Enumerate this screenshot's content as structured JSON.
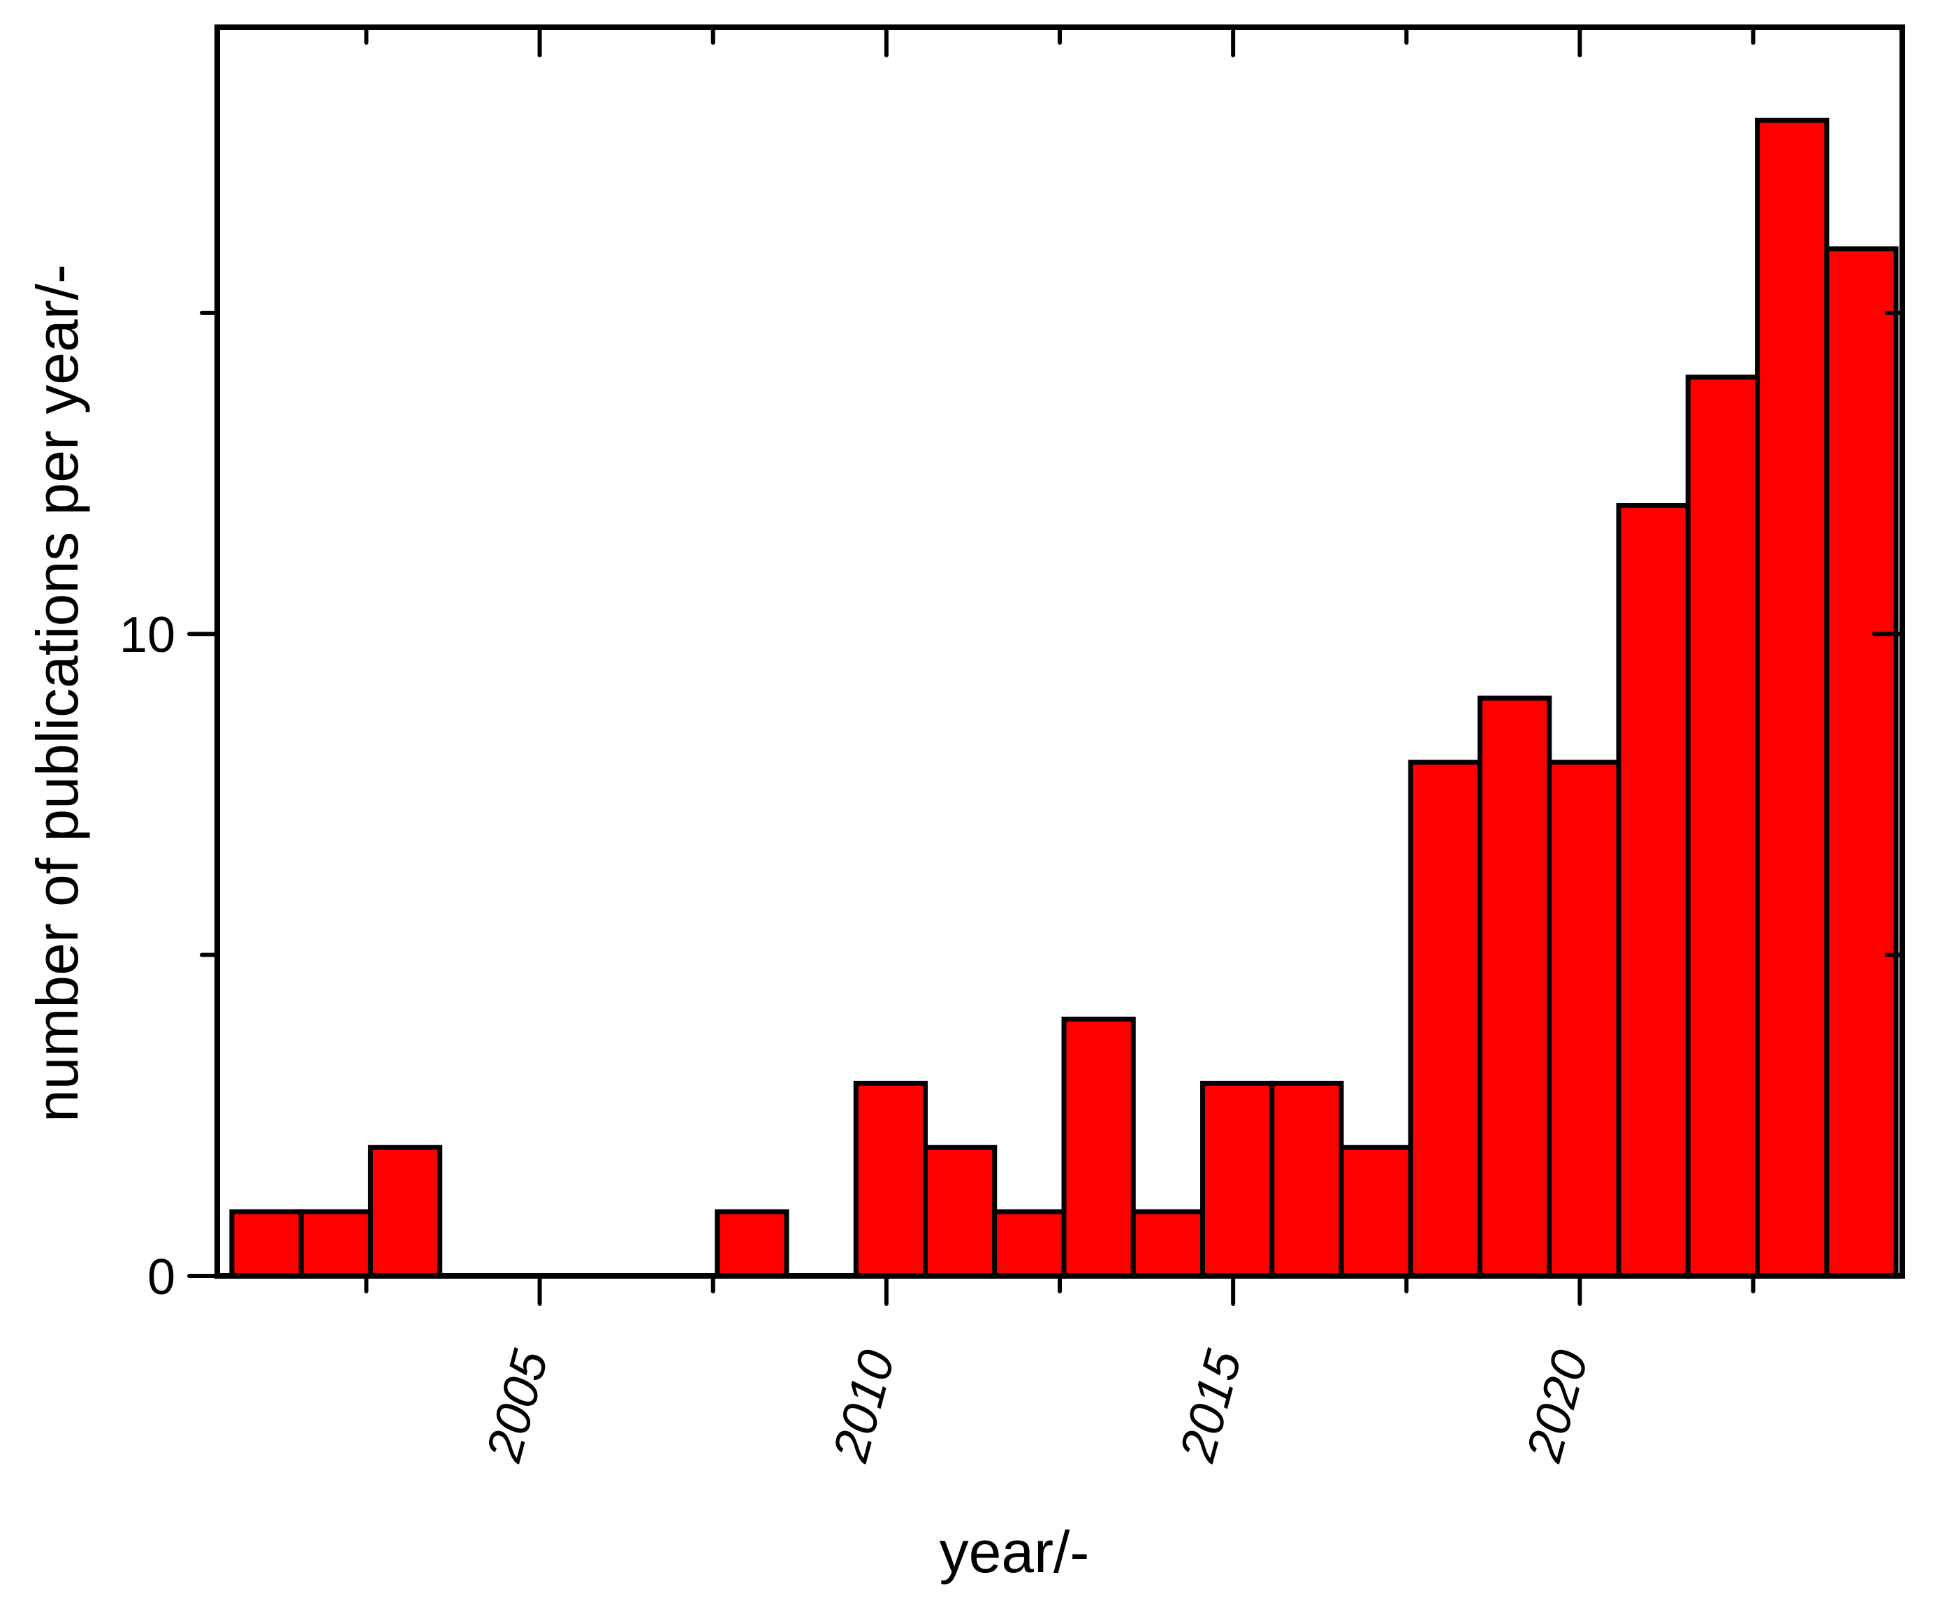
{
  "chart_data": {
    "type": "bar",
    "title": "",
    "xlabel": "year/-",
    "ylabel": "number of publications per year/-",
    "categories": [
      2001,
      2002,
      2003,
      2004,
      2005,
      2006,
      2007,
      2008,
      2009,
      2010,
      2011,
      2012,
      2013,
      2014,
      2015,
      2016,
      2017,
      2018,
      2019,
      2020,
      2021,
      2022,
      2023,
      2024
    ],
    "values": [
      1,
      1,
      2,
      0,
      0,
      0,
      0,
      1,
      0,
      3,
      2,
      1,
      4,
      1,
      3,
      3,
      2,
      8,
      9,
      8,
      12,
      14,
      18,
      16
    ],
    "xlim": [
      2000.35,
      2024.65
    ],
    "ylim": [
      0,
      19.45
    ],
    "x_major_ticks": [
      2005,
      2010,
      2015,
      2020
    ],
    "x_major_tick_labels": [
      "2005",
      "2010",
      "2015",
      "2020"
    ],
    "x_minor_ticks": [
      2002.5,
      2007.5,
      2012.5,
      2017.5,
      2022.5
    ],
    "y_major_ticks": [
      0,
      10
    ],
    "y_major_tick_labels": [
      "0",
      "10"
    ],
    "y_minor_ticks": [
      5,
      15
    ],
    "x_tick_label_rotation_deg": -75,
    "grid": false,
    "legend": null,
    "bar_fill_color": "#ff0000",
    "bar_edge_color": "#000000",
    "frame": "box"
  }
}
